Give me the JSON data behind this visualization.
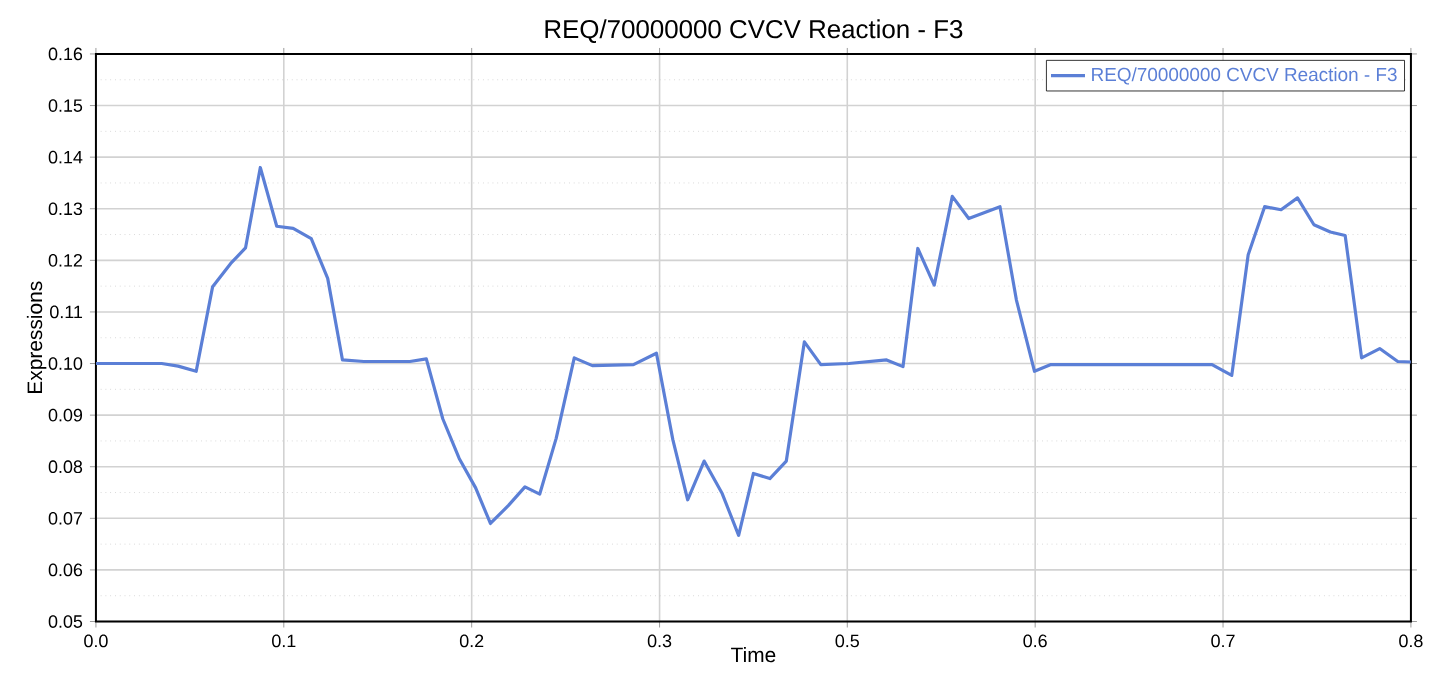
{
  "chart_data": {
    "type": "line",
    "title": "REQ/70000000 CVCV Reaction - F3",
    "xlabel": "Time",
    "ylabel": "Expressions",
    "xlim": [
      0,
      0.8
    ],
    "ylim": [
      0.05,
      0.16
    ],
    "xticks": [
      {
        "value": 0,
        "label": "0.0"
      },
      {
        "value": 0.1143,
        "label": "0.1"
      },
      {
        "value": 0.2286,
        "label": "0.2"
      },
      {
        "value": 0.3429,
        "label": "0.3"
      },
      {
        "value": 0.4571,
        "label": "0.5"
      },
      {
        "value": 0.5714,
        "label": "0.6"
      },
      {
        "value": 0.6857,
        "label": "0.7"
      },
      {
        "value": 0.8,
        "label": "0.8"
      }
    ],
    "yticks": [
      {
        "value": 0.05,
        "label": "0.05"
      },
      {
        "value": 0.06,
        "label": "0.06"
      },
      {
        "value": 0.07,
        "label": "0.07"
      },
      {
        "value": 0.08,
        "label": "0.08"
      },
      {
        "value": 0.09,
        "label": "0.09"
      },
      {
        "value": 0.1,
        "label": "0.10"
      },
      {
        "value": 0.11,
        "label": "0.11"
      },
      {
        "value": 0.12,
        "label": "0.12"
      },
      {
        "value": 0.13,
        "label": "0.13"
      },
      {
        "value": 0.14,
        "label": "0.14"
      },
      {
        "value": 0.15,
        "label": "0.15"
      },
      {
        "value": 0.16,
        "label": "0.16"
      }
    ],
    "grid": true,
    "legend": "top right",
    "marker": "none",
    "line_style": "solid",
    "series": [
      {
        "name": "REQ/70000000 CVCV Reaction - F3",
        "color": "#5b7fd6",
        "x": [
          0,
          0.04,
          0.05,
          0.061,
          0.071,
          0.082,
          0.091,
          0.1,
          0.11,
          0.12,
          0.131,
          0.141,
          0.15,
          0.163,
          0.191,
          0.201,
          0.211,
          0.221,
          0.231,
          0.24,
          0.251,
          0.261,
          0.27,
          0.28,
          0.291,
          0.302,
          0.327,
          0.341,
          0.351,
          0.36,
          0.37,
          0.381,
          0.391,
          0.4,
          0.41,
          0.42,
          0.431,
          0.441,
          0.458,
          0.481,
          0.491,
          0.5,
          0.51,
          0.521,
          0.531,
          0.55,
          0.56,
          0.571,
          0.581,
          0.679,
          0.691,
          0.701,
          0.711,
          0.721,
          0.731,
          0.741,
          0.751,
          0.76,
          0.77,
          0.781,
          0.792,
          0.8
        ],
        "values": [
          0.1,
          0.1,
          0.0995,
          0.0985,
          0.1149,
          0.1194,
          0.1224,
          0.138,
          0.1266,
          0.1262,
          0.1242,
          0.1165,
          0.1007,
          0.1004,
          0.1004,
          0.1009,
          0.0893,
          0.0816,
          0.0759,
          0.069,
          0.0725,
          0.0761,
          0.0747,
          0.0855,
          0.1011,
          0.0996,
          0.0998,
          0.102,
          0.0852,
          0.0736,
          0.0811,
          0.0748,
          0.0667,
          0.0787,
          0.0777,
          0.0811,
          0.1042,
          0.0998,
          0.1,
          0.1007,
          0.0994,
          0.1223,
          0.1152,
          0.1324,
          0.1281,
          0.1304,
          0.1123,
          0.0985,
          0.0998,
          0.0998,
          0.0977,
          0.1211,
          0.1304,
          0.1298,
          0.1321,
          0.1269,
          0.1255,
          0.1248,
          0.1011,
          0.1029,
          0.1004,
          0.1003
        ]
      }
    ]
  }
}
